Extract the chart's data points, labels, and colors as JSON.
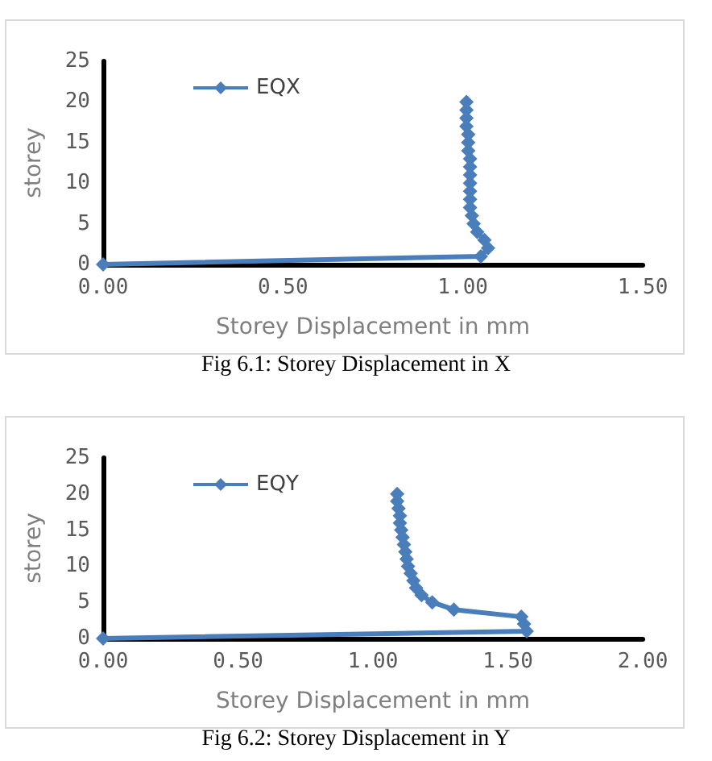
{
  "chart_data": [
    {
      "type": "line",
      "xlabel": "Storey Displacement in mm",
      "ylabel": "storey",
      "annotations": [
        "Fig 6.1: Storey Displacement in X"
      ],
      "xlim": [
        0,
        1.5
      ],
      "xticks": [
        {
          "value": 0,
          "label": "0.00"
        },
        {
          "value": 0.5,
          "label": "0.50"
        },
        {
          "value": 1,
          "label": "1.00"
        },
        {
          "value": 1.5,
          "label": "1.50"
        }
      ],
      "ylim": [
        0,
        25
      ],
      "yticks": [
        0,
        5,
        10,
        15,
        20,
        25
      ],
      "grid": false,
      "legend": "top left",
      "marker": "diamond",
      "line_style": "solid",
      "series": [
        {
          "name": "EQX",
          "color": "#4a7ebb",
          "x": [
            0,
            1.05,
            1.07,
            1.06,
            1.04,
            1.03,
            1.025,
            1.02,
            1.02,
            1.02,
            1.02,
            1.02,
            1.02,
            1.02,
            1.015,
            1.015,
            1.015,
            1.01,
            1.01,
            1.01,
            1.01
          ],
          "values": [
            0,
            1,
            2,
            3,
            4,
            5,
            6,
            7,
            8,
            9,
            10,
            11,
            12,
            13,
            14,
            15,
            16,
            17,
            18,
            19,
            20
          ]
        }
      ]
    },
    {
      "type": "line",
      "xlabel": "Storey Displacement in mm",
      "ylabel": "storey",
      "annotations": [
        "Fig 6.2: Storey Displacement in Y"
      ],
      "xlim": [
        0,
        2
      ],
      "xticks": [
        {
          "value": 0,
          "label": "0.00"
        },
        {
          "value": 0.5,
          "label": "0.50"
        },
        {
          "value": 1,
          "label": "1.00"
        },
        {
          "value": 1.5,
          "label": "1.50"
        },
        {
          "value": 2,
          "label": "2.00"
        }
      ],
      "ylim": [
        0,
        25
      ],
      "yticks": [
        0,
        5,
        10,
        15,
        20,
        25
      ],
      "grid": false,
      "legend": "top left",
      "marker": "diamond",
      "line_style": "solid",
      "series": [
        {
          "name": "EQY",
          "color": "#4a7ebb",
          "x": [
            0,
            1.57,
            1.56,
            1.55,
            1.3,
            1.22,
            1.18,
            1.16,
            1.15,
            1.14,
            1.13,
            1.125,
            1.12,
            1.115,
            1.11,
            1.105,
            1.1,
            1.1,
            1.095,
            1.09,
            1.09
          ],
          "values": [
            0,
            1,
            2,
            3,
            4,
            5,
            6,
            7,
            8,
            9,
            10,
            11,
            12,
            13,
            14,
            15,
            16,
            17,
            18,
            19,
            20
          ]
        }
      ]
    }
  ]
}
